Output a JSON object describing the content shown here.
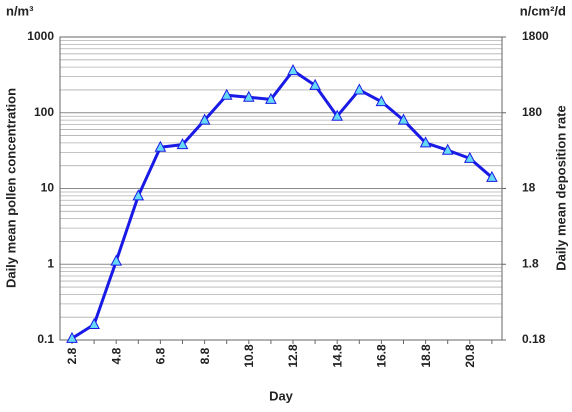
{
  "chart_data": {
    "type": "line",
    "left_unit": "n/m³",
    "right_unit": "n/cm²/d",
    "x_label": "Day",
    "y_label": "Daily mean pollen concentration",
    "y2_label": "Daily mean deposition rate",
    "categories": [
      "2.8",
      null,
      "4.8",
      null,
      "6.8",
      null,
      "8.8",
      null,
      "10.8",
      null,
      "12.8",
      null,
      "14.8",
      null,
      "16.8",
      null,
      "18.8",
      null,
      "20.8",
      null
    ],
    "series": [
      {
        "color": "#1a1ae6",
        "marker_color": "#66d9f5",
        "values": [
          0.105,
          0.16,
          1.1,
          8,
          35,
          38,
          80,
          170,
          160,
          150,
          360,
          230,
          90,
          200,
          140,
          80,
          40,
          32,
          25,
          14
        ]
      }
    ],
    "log_scale": true,
    "ylim": [
      0.1,
      1000
    ],
    "yticks": [
      0.1,
      1,
      10,
      100,
      1000
    ],
    "y2lim": [
      0.18,
      1800
    ],
    "y2ticks": [
      0.18,
      1.8,
      18,
      180,
      1800
    ],
    "grid": true
  }
}
